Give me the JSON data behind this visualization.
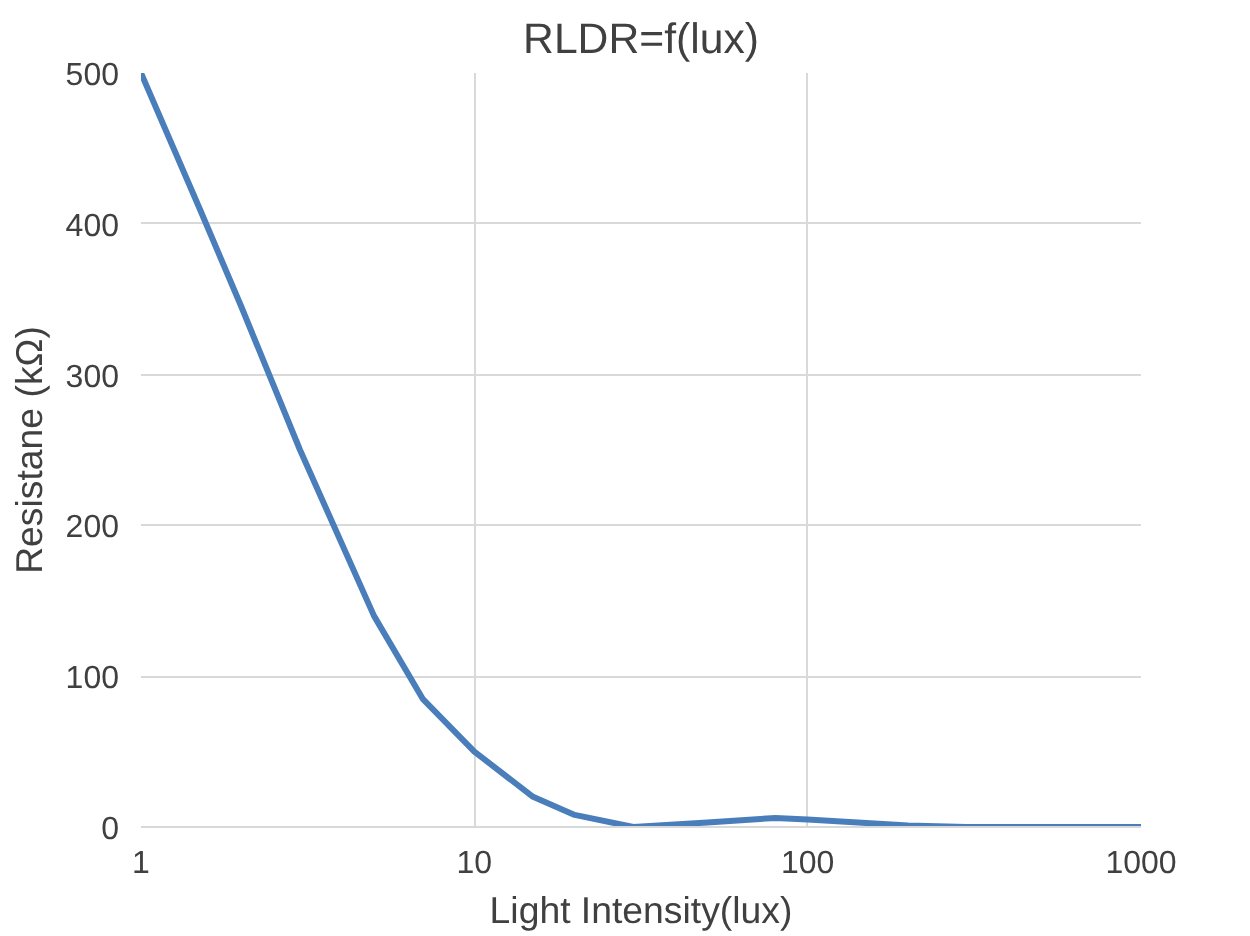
{
  "chart_data": {
    "type": "line",
    "title": "RLDR=f(lux)",
    "xlabel": "Light Intensity(lux)",
    "ylabel": "Resistane (kΩ)",
    "x": [
      1,
      1.5,
      2,
      3,
      5,
      7,
      10,
      15,
      20,
      30,
      50,
      80,
      100,
      200,
      300,
      500,
      1000
    ],
    "series": [
      {
        "color": "#4a7ebb",
        "values": [
          500,
          410,
          345,
          250,
          140,
          85,
          50,
          20,
          8,
          0,
          3,
          6,
          5,
          1,
          0,
          0,
          0
        ]
      }
    ],
    "log": "x",
    "xlim": [
      1,
      1000
    ],
    "xticks": [
      1,
      10,
      100,
      1000
    ],
    "ylim": [
      0,
      500
    ],
    "yticks": [
      0,
      100,
      200,
      300,
      400,
      500
    ],
    "grid": true,
    "marker": "none",
    "line_style": "solid"
  }
}
